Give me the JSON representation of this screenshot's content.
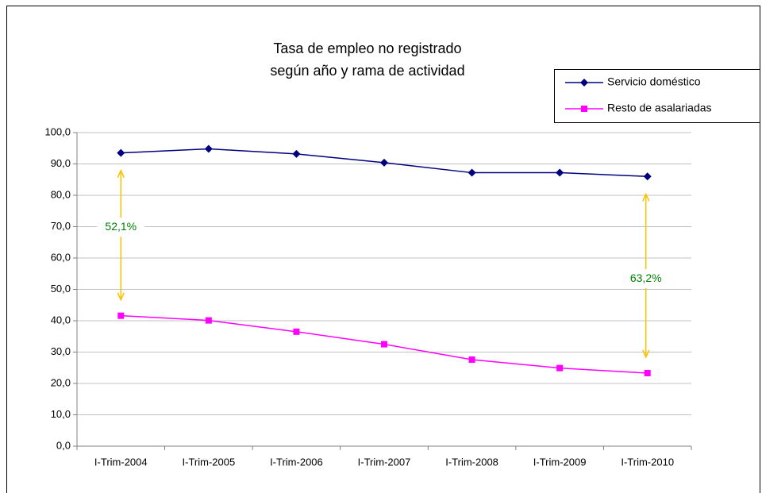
{
  "chart_data": {
    "type": "line",
    "title": [
      "Tasa de empleo no registrado",
      "según año y rama de actividad"
    ],
    "categories": [
      "I-Trim-2004",
      "I-Trim-2005",
      "I-Trim-2006",
      "I-Trim-2007",
      "I-Trim-2008",
      "I-Trim-2009",
      "I-Trim-2010"
    ],
    "series": [
      {
        "name": "Servicio doméstico",
        "color": "#000080",
        "marker": "diamond",
        "values": [
          93.5,
          94.8,
          93.2,
          90.4,
          87.2,
          87.2,
          86.0
        ]
      },
      {
        "name": "Resto de asalariadas",
        "color": "#ff00ff",
        "marker": "square",
        "values": [
          41.6,
          40.1,
          36.5,
          32.5,
          27.6,
          24.9,
          23.3
        ]
      }
    ],
    "ylim": [
      0,
      100
    ],
    "yticks": [
      {
        "value": 0,
        "label": "0,0"
      },
      {
        "value": 10,
        "label": "10,0"
      },
      {
        "value": 20,
        "label": "20,0"
      },
      {
        "value": 30,
        "label": "30,0"
      },
      {
        "value": 40,
        "label": "40,0"
      },
      {
        "value": 50,
        "label": "50,0"
      },
      {
        "value": 60,
        "label": "60,0"
      },
      {
        "value": 70,
        "label": "70,0"
      },
      {
        "value": 80,
        "label": "80,0"
      },
      {
        "value": 90,
        "label": "90,0"
      },
      {
        "value": 100,
        "label": "100,0"
      }
    ],
    "grid": true,
    "legend": "top-right",
    "annotations": [
      "52,1%",
      "63,2%"
    ]
  }
}
